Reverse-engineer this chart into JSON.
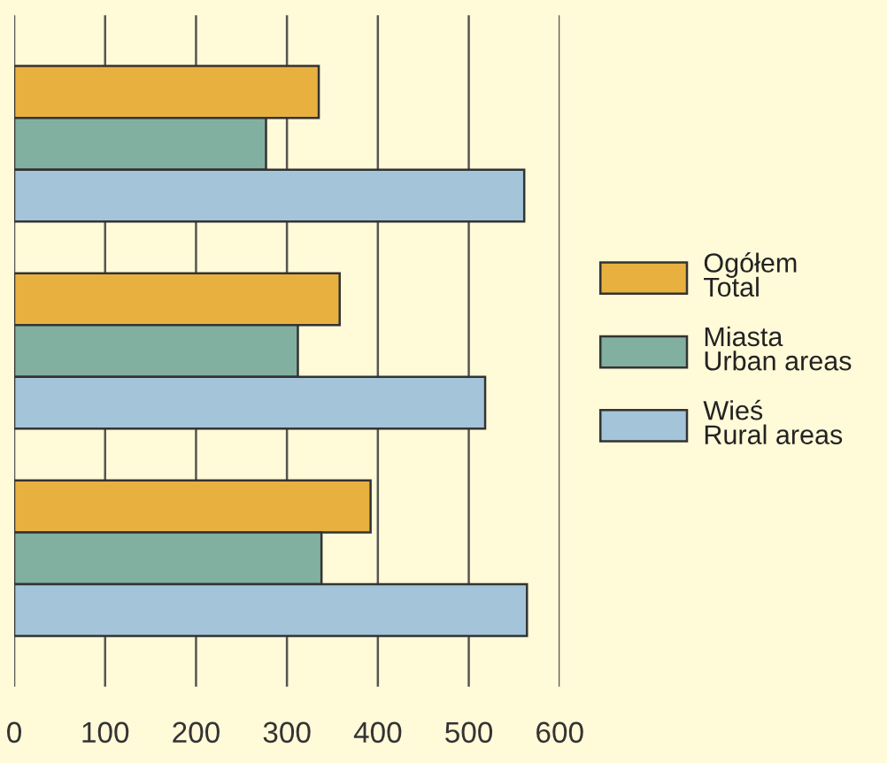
{
  "chart_data": {
    "type": "bar",
    "orientation": "horizontal",
    "categories": [
      null,
      null,
      null
    ],
    "series": [
      {
        "name": "Ogółem\nTotal",
        "color": "#e8b13f",
        "values": [
          335,
          358,
          392
        ]
      },
      {
        "name": "Miasta\nUrban areas",
        "color": "#82b0a0",
        "values": [
          277,
          312,
          338
        ]
      },
      {
        "name": "Wieś\nRural areas",
        "color": "#a3c4d9",
        "values": [
          561,
          518,
          564
        ]
      }
    ],
    "xlim": [
      0,
      600
    ],
    "xticks": [
      0,
      100,
      200,
      300,
      400,
      500,
      600
    ],
    "grid": "x",
    "legend": "right"
  }
}
